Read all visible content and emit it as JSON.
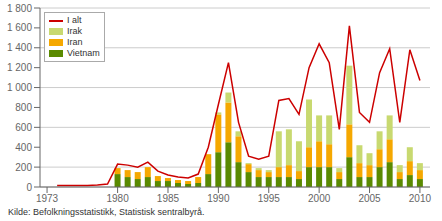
{
  "chart_data": {
    "type": "bar",
    "stacked": true,
    "grid": true,
    "legend": "upper left",
    "x": [
      1974,
      1975,
      1976,
      1977,
      1978,
      1979,
      1980,
      1981,
      1982,
      1983,
      1984,
      1985,
      1986,
      1987,
      1988,
      1989,
      1990,
      1991,
      1992,
      1993,
      1994,
      1995,
      1996,
      1997,
      1998,
      1999,
      2000,
      2001,
      2002,
      2003,
      2004,
      2005,
      2006,
      2007,
      2008,
      2009,
      2010
    ],
    "series": [
      {
        "name": "I alt",
        "type": "line",
        "color": "#cc0000",
        "values": [
          15,
          15,
          15,
          15,
          20,
          30,
          230,
          220,
          200,
          250,
          160,
          120,
          100,
          90,
          130,
          400,
          830,
          1250,
          650,
          310,
          280,
          310,
          870,
          890,
          730,
          1200,
          1440,
          1250,
          580,
          1620,
          750,
          650,
          1150,
          1390,
          650,
          1380,
          1070
        ]
      },
      {
        "name": "Irak",
        "type": "bar",
        "color": "#c8d970",
        "values": [
          0,
          0,
          0,
          0,
          0,
          0,
          0,
          0,
          0,
          0,
          0,
          0,
          0,
          0,
          0,
          0,
          20,
          100,
          50,
          10,
          20,
          20,
          360,
          360,
          300,
          480,
          260,
          290,
          40,
          590,
          180,
          120,
          180,
          240,
          70,
          140,
          70
        ]
      },
      {
        "name": "Iran",
        "type": "bar",
        "color": "#f5a800",
        "values": [
          0,
          0,
          0,
          0,
          0,
          0,
          60,
          70,
          70,
          100,
          50,
          30,
          30,
          30,
          60,
          200,
          380,
          400,
          260,
          80,
          70,
          50,
          100,
          120,
          80,
          200,
          260,
          230,
          70,
          330,
          140,
          120,
          180,
          230,
          70,
          140,
          90
        ]
      },
      {
        "name": "Vietnam",
        "type": "bar",
        "color": "#5a8a00",
        "values": [
          0,
          0,
          0,
          0,
          0,
          0,
          130,
          100,
          80,
          100,
          60,
          60,
          40,
          30,
          40,
          130,
          350,
          450,
          250,
          150,
          100,
          100,
          100,
          100,
          80,
          200,
          200,
          200,
          80,
          300,
          100,
          100,
          200,
          250,
          80,
          120,
          80
        ]
      }
    ],
    "xlim": [
      1972.3,
      2011.0
    ],
    "xticks": [
      1973,
      1980,
      1985,
      1990,
      1995,
      2000,
      2005,
      2010
    ],
    "ylim": [
      0,
      1800
    ],
    "yticks": [
      0,
      200,
      400,
      600,
      800,
      {
        "value": 1000,
        "label": "1 000"
      },
      {
        "value": 1200,
        "label": "1 200"
      },
      {
        "value": 1400,
        "label": "1 400"
      },
      {
        "value": 1600,
        "label": "1 600"
      },
      {
        "value": 1800,
        "label": "1 800"
      }
    ],
    "annotations": [
      "Kilde: Befolkningsstatistikk, Statistisk sentralbyrå."
    ]
  }
}
